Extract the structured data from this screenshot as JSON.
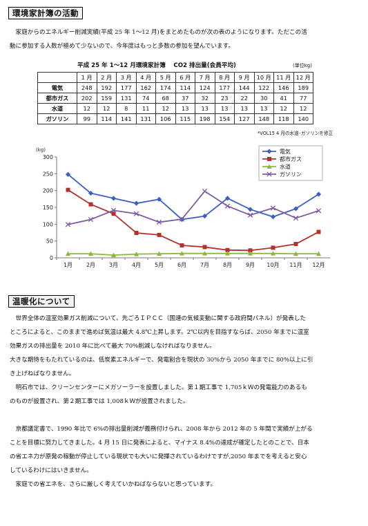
{
  "section1": {
    "heading": "環境家計簿の活動",
    "intro_lines": [
      "家庭からのエネルギー削減実績(平成 25 年 1〜12 月)をまとめたものが次の表のようになります。ただこの活",
      "動に参加する人数が極めて少ないので、今年度はもっと多数の参加を望んでいます。"
    ]
  },
  "table": {
    "title": "平成 25 年 1〜12 月環境家計簿　 CO2 排出量(会員平均)",
    "unit": "(単位kg)",
    "months": [
      "1 月",
      "2 月",
      "3 月",
      "4 月",
      "5 月",
      "6 月",
      "7 月",
      "8 月",
      "9 月",
      "10 月",
      "11 月",
      "12 月"
    ],
    "rows": [
      {
        "label": "電気",
        "values": [
          248,
          192,
          177,
          162,
          174,
          114,
          124,
          177,
          144,
          122,
          146,
          189
        ]
      },
      {
        "label": "都市ガス",
        "values": [
          202,
          159,
          131,
          74,
          68,
          37,
          32,
          23,
          22,
          30,
          41,
          77
        ]
      },
      {
        "label": "水道",
        "values": [
          12,
          12,
          8,
          11,
          12,
          13,
          13,
          13,
          13,
          13,
          12,
          12
        ]
      },
      {
        "label": "ガソリン",
        "values": [
          99,
          114,
          141,
          131,
          106,
          115,
          198,
          154,
          127,
          148,
          118,
          140
        ]
      }
    ],
    "footnote": "*VOL15 4 月の水道･ガソリンを修正"
  },
  "chart_data": {
    "type": "line",
    "ylabel": "(kg)",
    "ylim": [
      0,
      300
    ],
    "yticks": [
      0,
      50,
      100,
      150,
      200,
      250,
      300
    ],
    "categories": [
      "1月",
      "2月",
      "3月",
      "4月",
      "5月",
      "6月",
      "7月",
      "8月",
      "9月",
      "10月",
      "11月",
      "12月"
    ],
    "legend_position": "top-right",
    "grid": false,
    "series": [
      {
        "name": "電気",
        "color": "#3b5fc4",
        "marker": "diamond",
        "values": [
          248,
          192,
          177,
          162,
          174,
          114,
          124,
          177,
          144,
          122,
          146,
          189
        ]
      },
      {
        "name": "都市ガス",
        "color": "#b5302a",
        "marker": "square",
        "values": [
          202,
          159,
          131,
          74,
          68,
          37,
          32,
          23,
          22,
          30,
          41,
          77
        ]
      },
      {
        "name": "水道",
        "color": "#8cb83a",
        "marker": "triangle",
        "values": [
          12,
          12,
          8,
          11,
          12,
          13,
          13,
          13,
          13,
          13,
          12,
          12
        ]
      },
      {
        "name": "ガソリン",
        "color": "#7b5aa6",
        "marker": "x",
        "values": [
          99,
          114,
          141,
          131,
          106,
          115,
          198,
          154,
          127,
          148,
          118,
          140
        ]
      }
    ]
  },
  "section2": {
    "heading": "温暖化について",
    "paragraphs": [
      {
        "indent": true,
        "lines": [
          "世界全体の温室効果ガス削減について、先ごろＩＰＣＣ（国連の気候変動に関する政府間パネル）が発表した",
          "ところによると、このままで進めば気温は最大 4.8℃上昇します。2℃以内を目指すならば、2050 年までに温室",
          "効果ガスの排出量を 2010 年に比べて最大 70%削減しなければなりません。"
        ]
      },
      {
        "indent": false,
        "lines": [
          "大きな期待をもたれているのは、低炭素エネルギーで、発電割合を現状の 30%から 2050 年までに 80%以上に引",
          "き上げねばなりません。"
        ]
      },
      {
        "indent": true,
        "lines": [
          "明石市では、クリーンセンターにメガソーラーを設置しました。第１期工事で 1,705ｋＷの発電能力のあるも",
          "のものが設置され、第２期工事では 1,008ｋＷが設置されました。"
        ]
      },
      {
        "indent": true,
        "lines": [
          "京都議定書で、1990 年比で 6%の排出量削減が義務付けられ、2008 年から 2012 年の 5 年間で実績が上がる",
          "ことを目標に努力してきました。4 月 15 日に発表によると、マイナス 8.4%の達成が確定したとのことで、日本",
          "の省エネ力が原発の稼動が停止している現状でも大いに発揮されているわけですが,2050 年までを考えると安心",
          "しているわけにはいきません。"
        ]
      },
      {
        "indent": true,
        "lines": [
          "家庭での省エネを、さらに厳しく考えていかねばならないと思っています。"
        ]
      }
    ]
  }
}
